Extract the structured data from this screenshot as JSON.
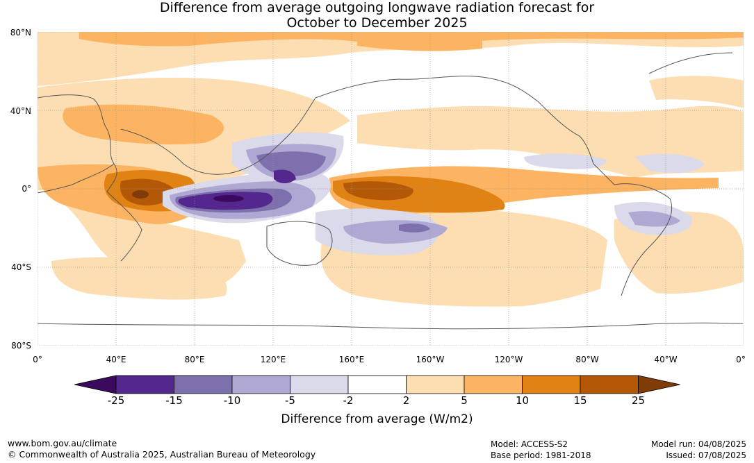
{
  "title": {
    "line1": "Difference from average outgoing longwave radiation forecast for",
    "line2": "October to December 2025"
  },
  "lat_labels": [
    "80°N",
    "40°N",
    "0°",
    "40°S",
    "80°S"
  ],
  "lon_labels": [
    "0°",
    "40°E",
    "80°E",
    "120°E",
    "160°E",
    "160°W",
    "120°W",
    "80°W",
    "40°W",
    "0°"
  ],
  "colorbar": {
    "ticks": [
      "-25",
      "-15",
      "-10",
      "-5",
      "-2",
      "2",
      "5",
      "10",
      "15",
      "25"
    ],
    "colors": [
      "#3b0a5e",
      "#54278f",
      "#7e70ad",
      "#afa8d3",
      "#dadaeb",
      "#ffffff",
      "#fdddb2",
      "#fdb462",
      "#e08214",
      "#b35806",
      "#7f3b08"
    ],
    "title": "Difference from average (W/m2)"
  },
  "footer": {
    "url": "www.bom.gov.au/climate",
    "copyright": "© Commonwealth of Australia 2025, Australian Bureau of Meteorology",
    "model": "Model: ACCESS-S2",
    "base_period": "Base period: 1981-2018",
    "model_run": "Model run: 04/08/2025",
    "issued": "Issued: 07/08/2025"
  }
}
